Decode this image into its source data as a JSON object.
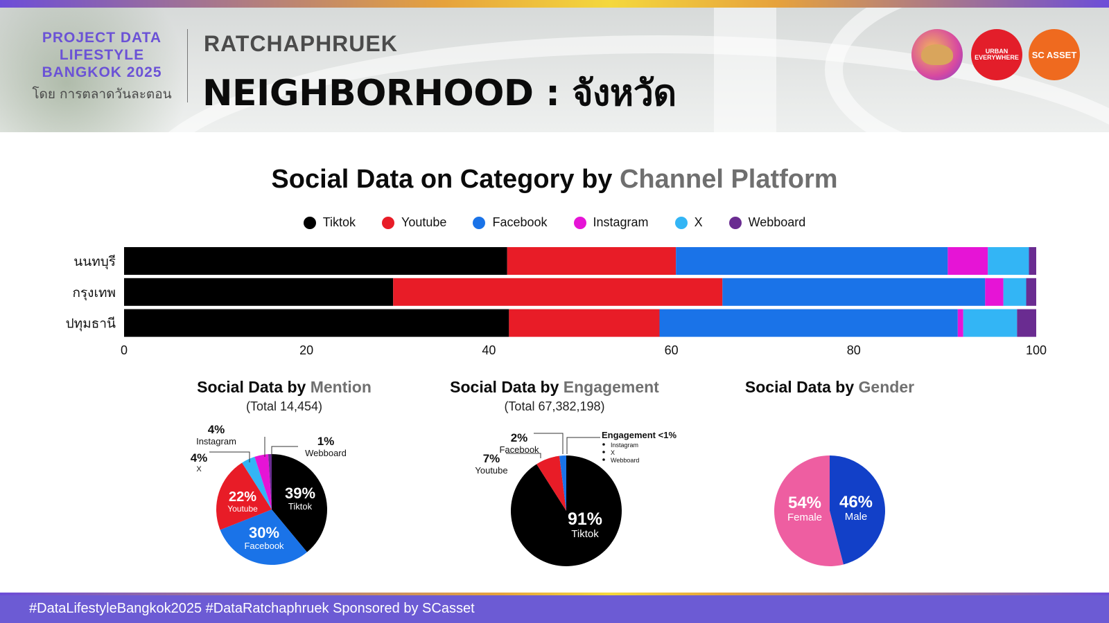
{
  "header": {
    "brand_title": "PROJECT DATA LIFESTYLE BANGKOK 2025",
    "brand_subtitle": "โดย การตลาดวันละตอน",
    "location": "RATCHAPHRUEK",
    "headline": "NEIGHBORHOOD : จังหวัด",
    "logos": [
      {
        "name": "avatar-logo",
        "text": ""
      },
      {
        "name": "urban-everywhere-logo",
        "text": "URBAN EVERYWHERE"
      },
      {
        "name": "sc-asset-logo",
        "text": "SC ASSET"
      }
    ]
  },
  "main_title": {
    "lead": "Social Data on Category by ",
    "accent": "Channel Platform"
  },
  "colors": {
    "Tiktok": "#000000",
    "Youtube": "#e81c27",
    "Facebook": "#1a73e8",
    "Instagram": "#e614d6",
    "X": "#33b5f5",
    "Webboard": "#6a2c91",
    "Female": "#ee5ea1",
    "Male": "#1240c8"
  },
  "chart_data": [
    {
      "type": "bar",
      "orientation": "horizontal",
      "stacked": true,
      "categories": [
        "นนทบุรี",
        "กรุงเทพ",
        "ปทุมธานี"
      ],
      "series": [
        {
          "name": "Tiktok",
          "values": [
            42.0,
            29.5,
            42.2
          ]
        },
        {
          "name": "Youtube",
          "values": [
            18.5,
            36.1,
            16.5
          ]
        },
        {
          "name": "Facebook",
          "values": [
            29.8,
            28.8,
            32.7
          ]
        },
        {
          "name": "Instagram",
          "values": [
            4.4,
            2.0,
            0.6
          ]
        },
        {
          "name": "X",
          "values": [
            4.5,
            2.5,
            5.9
          ]
        },
        {
          "name": "Webboard",
          "values": [
            0.8,
            1.1,
            2.1
          ]
        }
      ],
      "xlim": [
        0,
        100
      ],
      "xticks": [
        0,
        20,
        40,
        60,
        80,
        100
      ],
      "legend": "top"
    },
    {
      "type": "pie",
      "title_lead": "Social Data by ",
      "title_accent": "Mention",
      "total": "(Total 14,454)",
      "slices": [
        {
          "label": "Tiktok",
          "value": 39,
          "text": "39%"
        },
        {
          "label": "Facebook",
          "value": 30,
          "text": "30%"
        },
        {
          "label": "Youtube",
          "value": 22,
          "text": "22%"
        },
        {
          "label": "X",
          "value": 4,
          "text": "4%"
        },
        {
          "label": "Instagram",
          "value": 4,
          "text": "4%"
        },
        {
          "label": "Webboard",
          "value": 1,
          "text": "1%"
        }
      ]
    },
    {
      "type": "pie",
      "title_lead": "Social Data by ",
      "title_accent": "Engagement",
      "total": "(Total 67,382,198)",
      "slices": [
        {
          "label": "Tiktok",
          "value": 91,
          "text": "91%"
        },
        {
          "label": "Youtube",
          "value": 7,
          "text": "7%"
        },
        {
          "label": "Facebook",
          "value": 2,
          "text": "2%"
        }
      ],
      "small_note": {
        "title": "Engagement <1%",
        "items": [
          "Instagram",
          "X",
          "Webboard"
        ]
      }
    },
    {
      "type": "pie",
      "title_lead": "Social Data by ",
      "title_accent": "Gender",
      "slices": [
        {
          "label": "Male",
          "value": 46,
          "text": "46%"
        },
        {
          "label": "Female",
          "value": 54,
          "text": "54%"
        }
      ]
    }
  ],
  "footer": {
    "text": "#DataLifestyleBangkok2025 #DataRatchaphruek Sponsored by SCasset"
  }
}
